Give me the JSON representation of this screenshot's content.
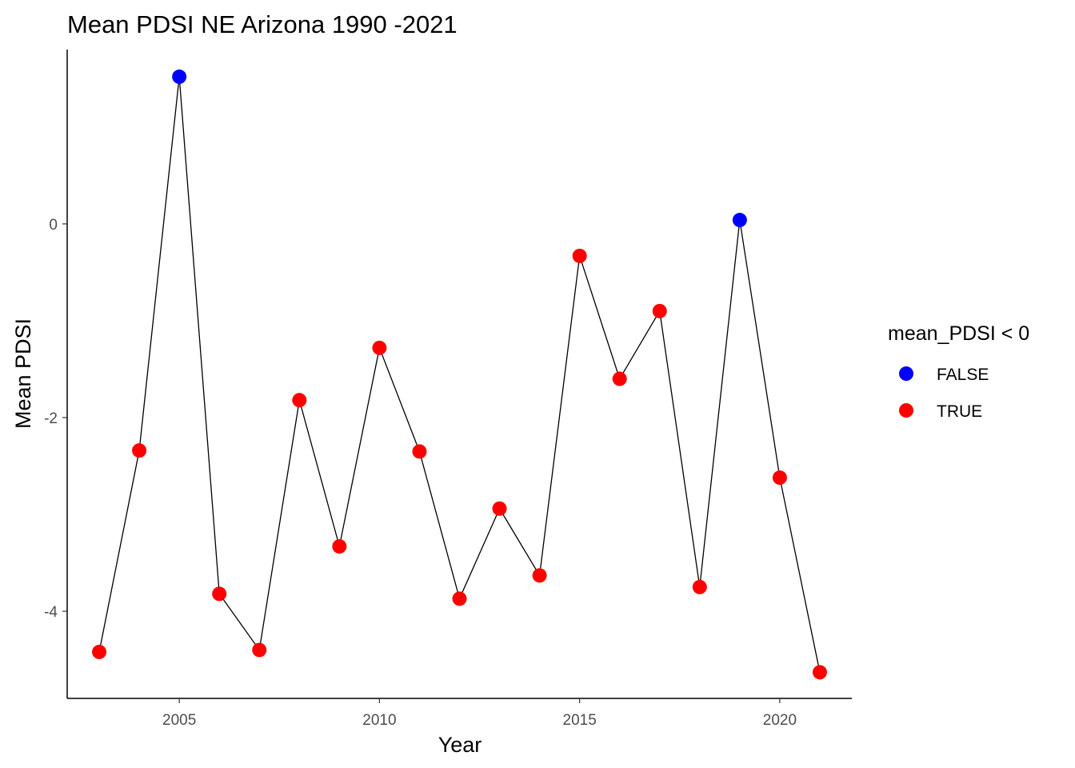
{
  "chart_data": {
    "type": "line",
    "title": "Mean PDSI NE Arizona 1990 -2021",
    "xlabel": "Year",
    "ylabel": "Mean PDSI",
    "xlim": [
      2002.2,
      2021.8
    ],
    "ylim": [
      -4.9,
      1.8
    ],
    "x_ticks": [
      2005,
      2010,
      2015,
      2020
    ],
    "x_tick_labels": [
      "2005",
      "2010",
      "2015",
      "2020"
    ],
    "y_ticks": [
      -4,
      -2,
      0
    ],
    "y_tick_labels": [
      "-4",
      "-2",
      "0"
    ],
    "grid": false,
    "legend": {
      "title": "mean_PDSI < 0",
      "position": "right",
      "entries": [
        {
          "label": "FALSE",
          "color": "#0000FF"
        },
        {
          "label": "TRUE",
          "color": "#FF0000"
        }
      ]
    },
    "line_color": "#000000",
    "points": [
      {
        "x": 2003,
        "y": -4.42,
        "group": "TRUE"
      },
      {
        "x": 2004,
        "y": -2.34,
        "group": "TRUE"
      },
      {
        "x": 2005,
        "y": 1.52,
        "group": "FALSE"
      },
      {
        "x": 2006,
        "y": -3.82,
        "group": "TRUE"
      },
      {
        "x": 2007,
        "y": -4.4,
        "group": "TRUE"
      },
      {
        "x": 2008,
        "y": -1.82,
        "group": "TRUE"
      },
      {
        "x": 2009,
        "y": -3.33,
        "group": "TRUE"
      },
      {
        "x": 2010,
        "y": -1.28,
        "group": "TRUE"
      },
      {
        "x": 2011,
        "y": -2.35,
        "group": "TRUE"
      },
      {
        "x": 2012,
        "y": -3.87,
        "group": "TRUE"
      },
      {
        "x": 2013,
        "y": -2.94,
        "group": "TRUE"
      },
      {
        "x": 2014,
        "y": -3.63,
        "group": "TRUE"
      },
      {
        "x": 2015,
        "y": -0.33,
        "group": "TRUE"
      },
      {
        "x": 2016,
        "y": -1.6,
        "group": "TRUE"
      },
      {
        "x": 2017,
        "y": -0.9,
        "group": "TRUE"
      },
      {
        "x": 2018,
        "y": -3.75,
        "group": "TRUE"
      },
      {
        "x": 2019,
        "y": 0.04,
        "group": "FALSE"
      },
      {
        "x": 2020,
        "y": -2.62,
        "group": "TRUE"
      },
      {
        "x": 2021,
        "y": -4.63,
        "group": "TRUE"
      }
    ]
  }
}
